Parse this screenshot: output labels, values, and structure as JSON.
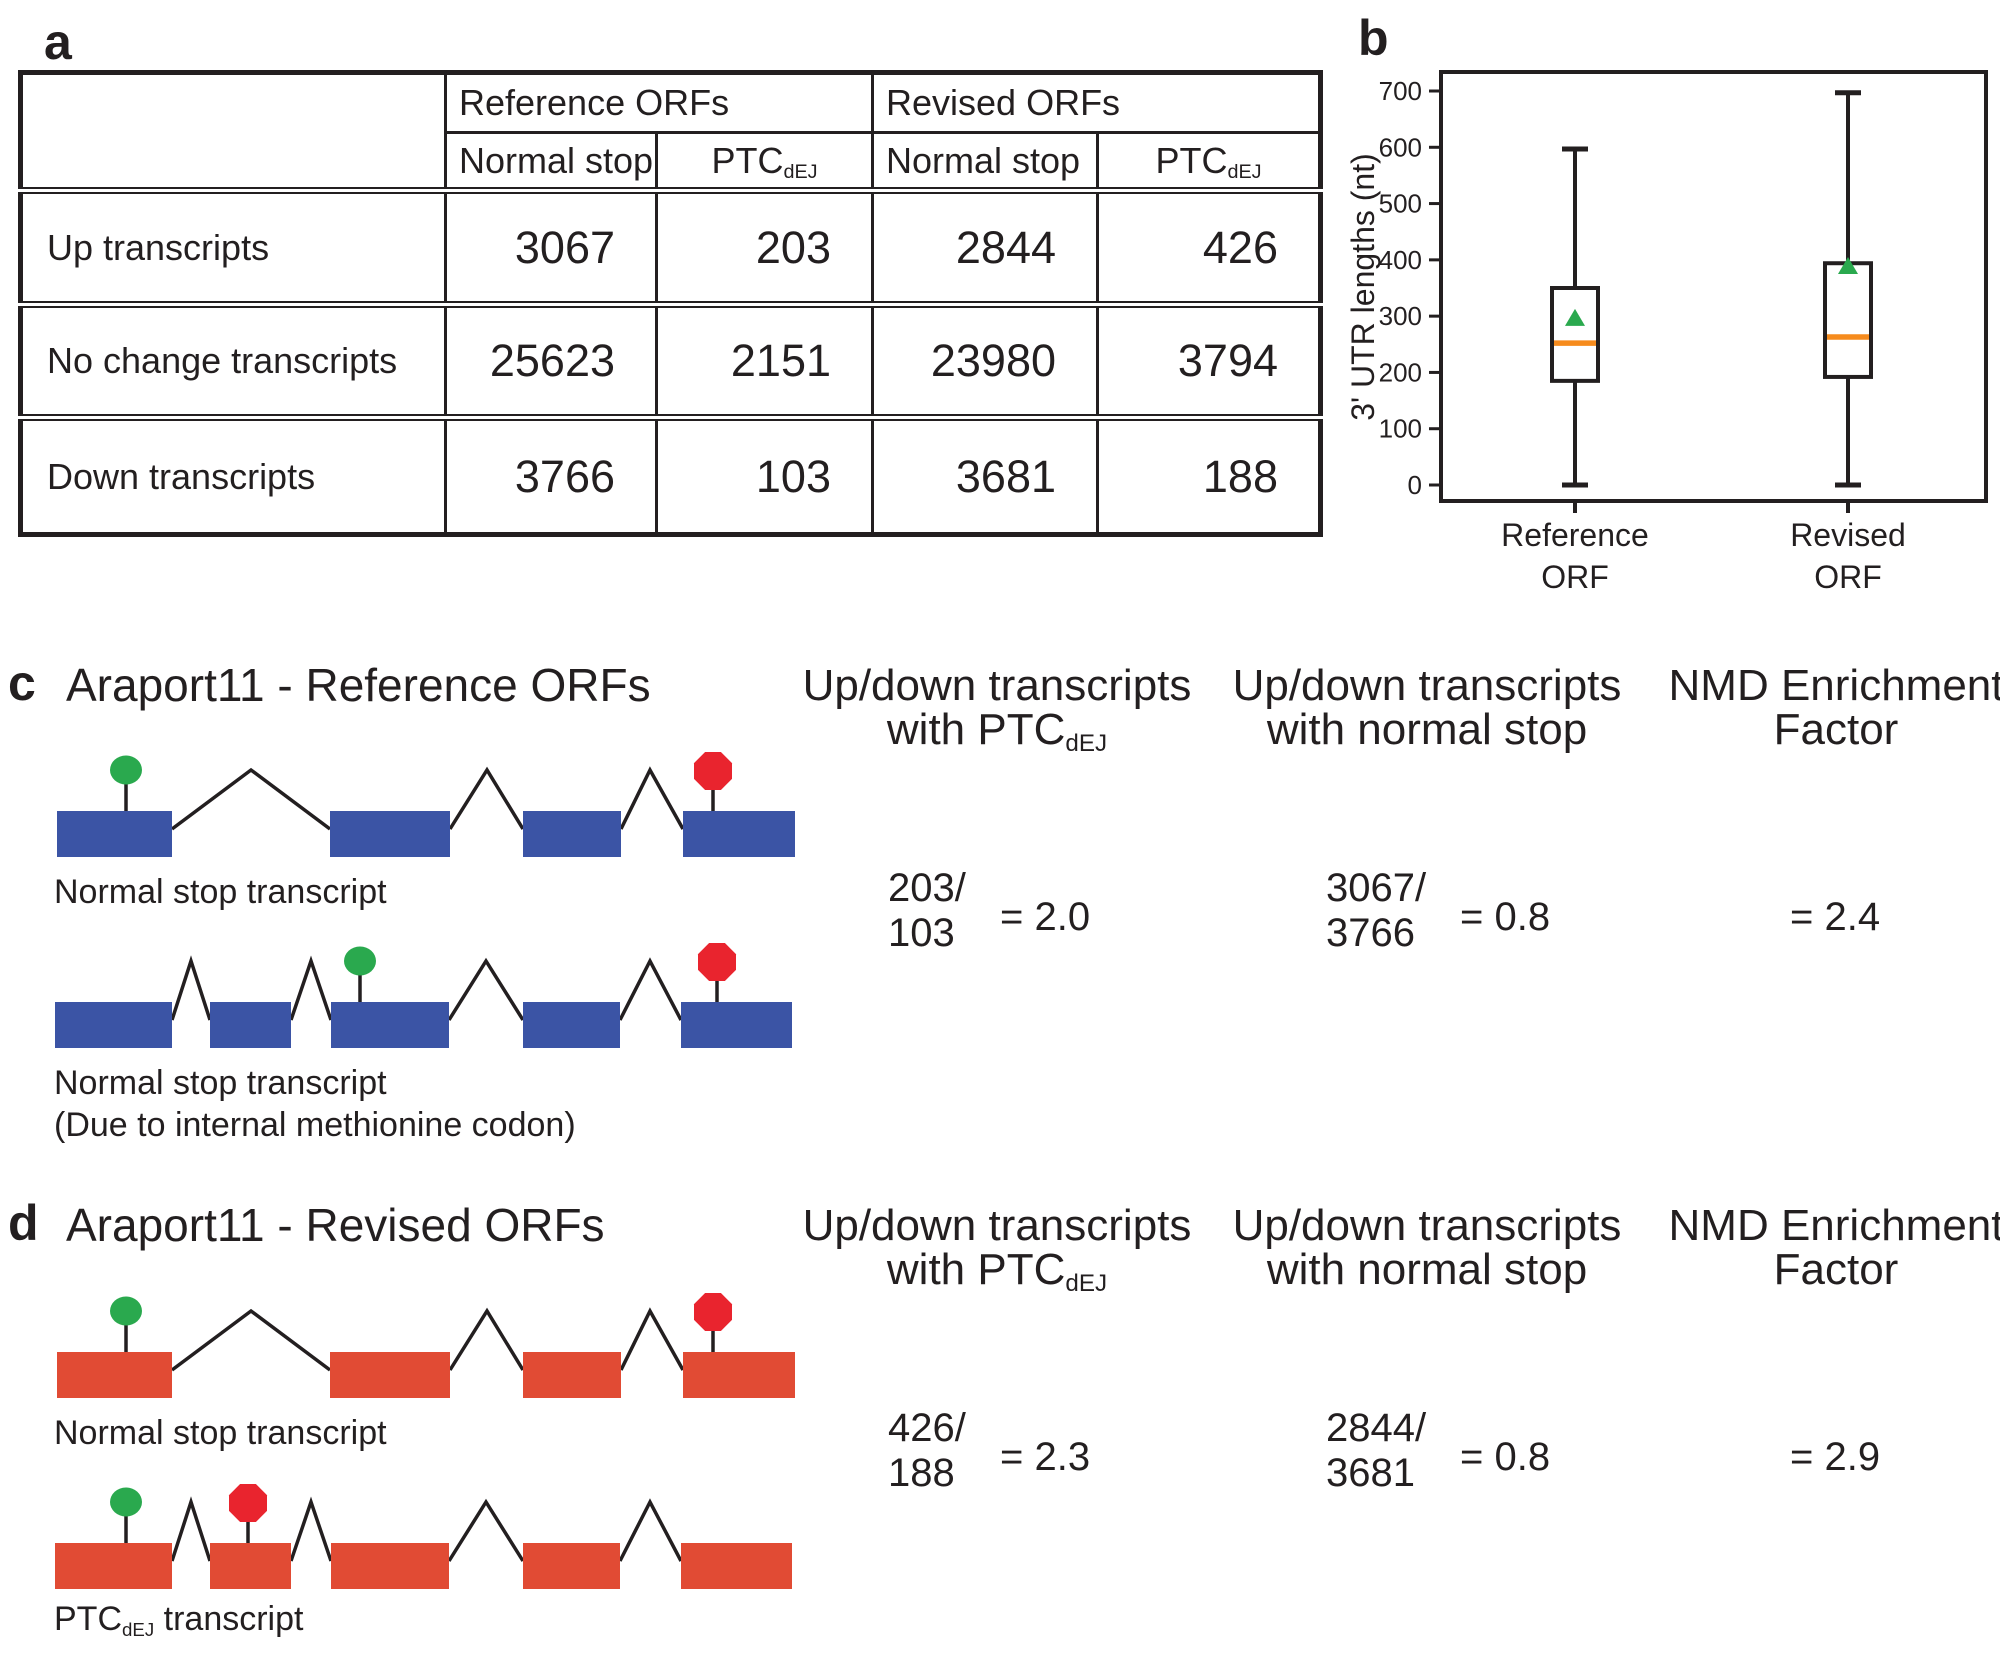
{
  "ptc": {
    "base": "PTC",
    "sub": "dEJ"
  },
  "colors": {
    "ink": "#231f20",
    "blue_exon": "#3b54a5",
    "red_exon": "#e14b34",
    "start_codon_green": "#2aa94e",
    "stop_codon_red": "#e9242e",
    "median_orange": "#f68b1d"
  },
  "panel_a": {
    "label": "a",
    "table": {
      "group_headers": [
        "Reference ORFs",
        "Revised ORFs"
      ],
      "normal_stop_header": "Normal stop",
      "rows": [
        {
          "label": "Up transcripts",
          "values": [
            "3067",
            "203",
            "2844",
            "426"
          ]
        },
        {
          "label": "No change transcripts",
          "values": [
            "25623",
            "2151",
            "23980",
            "3794"
          ]
        },
        {
          "label": "Down transcripts",
          "values": [
            "3766",
            "103",
            "3681",
            "188"
          ]
        }
      ]
    }
  },
  "panel_b": {
    "label": "b"
  },
  "chart_data": {
    "type": "boxplot",
    "title": "",
    "ylabel": "3' UTR lengths (nt)",
    "xlabel": "",
    "ylim": [
      0,
      700
    ],
    "yticks": [
      0,
      100,
      200,
      300,
      400,
      500,
      600,
      700
    ],
    "grid": false,
    "legend": "none",
    "categories": [
      [
        "Reference",
        "ORF"
      ],
      [
        "Revised",
        "ORF"
      ]
    ],
    "series": [
      {
        "name": "Reference ORF",
        "whisker_min": 0,
        "q1": 185,
        "median": 252,
        "mean": 297,
        "q3": 350,
        "whisker_max": 597
      },
      {
        "name": "Revised ORF",
        "whisker_min": 0,
        "q1": 192,
        "median": 263,
        "mean": 389,
        "q3": 394,
        "whisker_max": 697
      }
    ],
    "box_color": "#231f20",
    "median_color": "#f68b1d",
    "mean_marker_color": "#2aa94e",
    "mean_marker_shape": "triangle"
  },
  "panel_c": {
    "label": "c",
    "title": "Araport11 - Reference ORFs",
    "columns": [
      {
        "line1": "Up/down transcripts",
        "line2_prefix": "with "
      },
      {
        "line1": "Up/down transcripts",
        "line2": "with normal stop"
      },
      {
        "line1": "NMD Enrichment",
        "line2": "Factor"
      }
    ],
    "stats": [
      {
        "numerator": "203/",
        "denominator": "103",
        "result": "= 2.0"
      },
      {
        "numerator": "3067/",
        "denominator": "3766",
        "result": "= 0.8"
      },
      {
        "result": "= 2.4"
      }
    ],
    "transcripts": [
      {
        "name": "normal-stop-transcript",
        "label_lines": [
          "Normal stop transcript"
        ],
        "exon_color": "#3b54a5",
        "exons": [
          [
            17,
            115
          ],
          [
            290,
            120
          ],
          [
            483,
            98
          ],
          [
            643,
            112
          ]
        ],
        "introns": [
          [
            132,
            211,
            290
          ],
          [
            410,
            447,
            483
          ],
          [
            581,
            610,
            643
          ]
        ],
        "markers": [
          {
            "kind": "start-codon",
            "shape": "circle",
            "x": 86,
            "color": "#2aa94e"
          },
          {
            "kind": "stop-codon",
            "shape": "octagon",
            "x": 673,
            "color": "#e9242e"
          }
        ]
      },
      {
        "name": "normal-stop-internal-methionine-transcript",
        "label_lines": [
          "Normal stop transcript",
          "(Due to internal methionine codon)"
        ],
        "exon_color": "#3b54a5",
        "exons": [
          [
            15,
            117
          ],
          [
            170,
            81
          ],
          [
            291,
            118
          ],
          [
            483,
            97
          ],
          [
            641,
            111
          ]
        ],
        "introns": [
          [
            132,
            151,
            170
          ],
          [
            251,
            271,
            291
          ],
          [
            409,
            446,
            483
          ],
          [
            580,
            610,
            641
          ]
        ],
        "markers": [
          {
            "kind": "start-codon",
            "shape": "circle",
            "x": 320,
            "color": "#2aa94e"
          },
          {
            "kind": "stop-codon",
            "shape": "octagon",
            "x": 677,
            "color": "#e9242e"
          }
        ]
      }
    ]
  },
  "panel_d": {
    "label": "d",
    "title": "Araport11 - Revised ORFs",
    "columns": [
      {
        "line1": "Up/down transcripts",
        "line2_prefix": "with "
      },
      {
        "line1": "Up/down transcripts",
        "line2": "with normal stop"
      },
      {
        "line1": "NMD Enrichment",
        "line2": "Factor"
      }
    ],
    "stats": [
      {
        "numerator": "426/",
        "denominator": "188",
        "result": "= 2.3"
      },
      {
        "numerator": "2844/",
        "denominator": "3681",
        "result": "= 0.8"
      },
      {
        "result": "= 2.9"
      }
    ],
    "transcripts": [
      {
        "name": "normal-stop-transcript",
        "label_lines": [
          "Normal stop transcript"
        ],
        "exon_color": "#e14b34",
        "exons": [
          [
            17,
            115
          ],
          [
            290,
            120
          ],
          [
            483,
            98
          ],
          [
            643,
            112
          ]
        ],
        "introns": [
          [
            132,
            211,
            290
          ],
          [
            410,
            447,
            483
          ],
          [
            581,
            610,
            643
          ]
        ],
        "markers": [
          {
            "kind": "start-codon",
            "shape": "circle",
            "x": 86,
            "color": "#2aa94e"
          },
          {
            "kind": "stop-codon",
            "shape": "octagon",
            "x": 673,
            "color": "#e9242e"
          }
        ]
      },
      {
        "name": "ptc-dej-transcript",
        "label_suffix": " transcript",
        "exon_color": "#e14b34",
        "exons": [
          [
            15,
            117
          ],
          [
            170,
            81
          ],
          [
            291,
            118
          ],
          [
            483,
            97
          ],
          [
            641,
            111
          ]
        ],
        "introns": [
          [
            132,
            151,
            170
          ],
          [
            251,
            271,
            291
          ],
          [
            409,
            446,
            483
          ],
          [
            580,
            610,
            641
          ]
        ],
        "markers": [
          {
            "kind": "start-codon",
            "shape": "circle",
            "x": 86,
            "color": "#2aa94e"
          },
          {
            "kind": "stop-codon",
            "shape": "octagon",
            "x": 208,
            "color": "#e9242e"
          }
        ]
      }
    ]
  }
}
